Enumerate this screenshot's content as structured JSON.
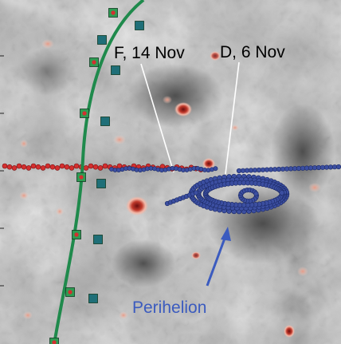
{
  "labels": {
    "f_label": "F, 14 Nov",
    "d_label": "D, 6 Nov",
    "perihelion": "Perihelion"
  },
  "colors": {
    "curve": "#1f8a4c",
    "square_green": "#2e9b52",
    "square_teal": "#1f6f78",
    "dot_red": "#d32f2f",
    "dot_blue": "#3b4ea0",
    "perihelion_text": "#3b5bbf",
    "background_gray": "#bdbdbd"
  }
}
